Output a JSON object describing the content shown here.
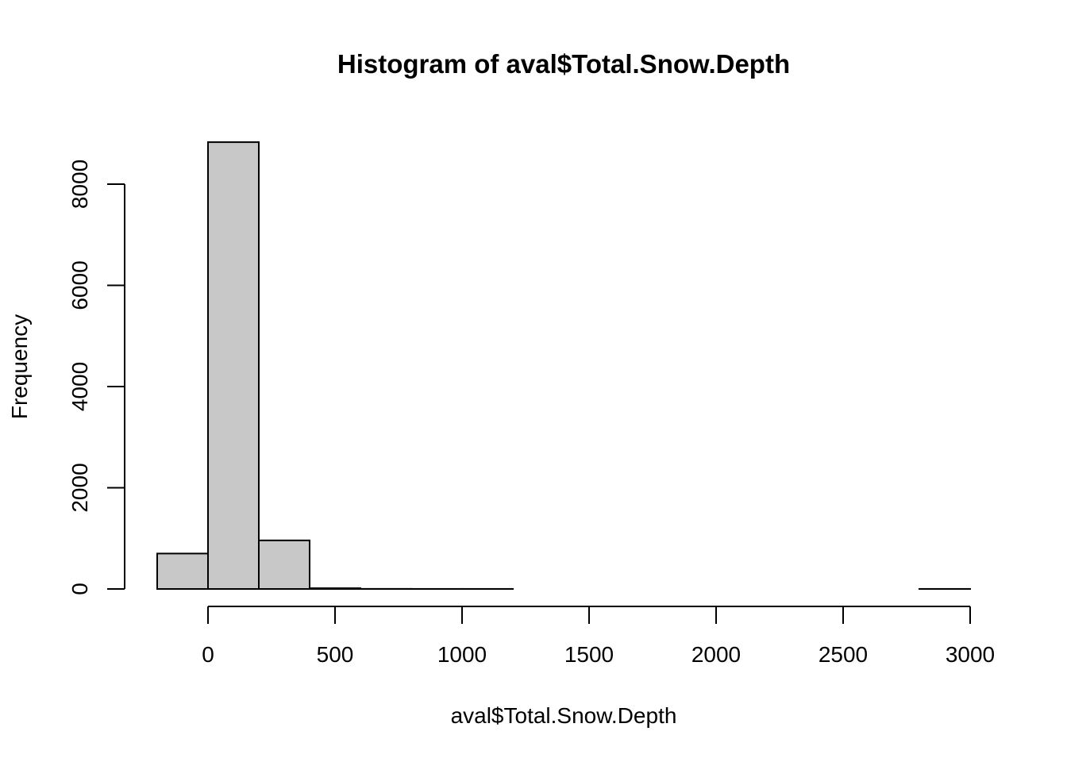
{
  "chart_data": {
    "type": "bar",
    "title": "Histogram of aval$Total.Snow.Depth",
    "xlabel": "aval$Total.Snow.Depth",
    "ylabel": "Frequency",
    "xlim": [
      -200,
      3000
    ],
    "ylim": [
      0,
      8800
    ],
    "x_ticks": [
      0,
      500,
      1000,
      1500,
      2000,
      2500,
      3000
    ],
    "y_ticks": [
      0,
      2000,
      4000,
      6000,
      8000
    ],
    "bins": [
      {
        "start": -200,
        "end": 0,
        "count": 700
      },
      {
        "start": 0,
        "end": 200,
        "count": 8830
      },
      {
        "start": 200,
        "end": 400,
        "count": 960
      },
      {
        "start": 400,
        "end": 600,
        "count": 15
      },
      {
        "start": 600,
        "end": 800,
        "count": 2
      },
      {
        "start": 800,
        "end": 1000,
        "count": 1
      },
      {
        "start": 1000,
        "end": 1200,
        "count": 1
      },
      {
        "start": 1200,
        "end": 1400,
        "count": 0
      },
      {
        "start": 1400,
        "end": 1600,
        "count": 0
      },
      {
        "start": 1600,
        "end": 1800,
        "count": 0
      },
      {
        "start": 1800,
        "end": 2000,
        "count": 0
      },
      {
        "start": 2000,
        "end": 2200,
        "count": 0
      },
      {
        "start": 2200,
        "end": 2400,
        "count": 0
      },
      {
        "start": 2400,
        "end": 2600,
        "count": 0
      },
      {
        "start": 2600,
        "end": 2800,
        "count": 0
      },
      {
        "start": 2800,
        "end": 3000,
        "count": 1
      }
    ],
    "bar_fill": "#c8c8c8",
    "bar_stroke": "#000000",
    "grid": false,
    "legend": "none"
  }
}
